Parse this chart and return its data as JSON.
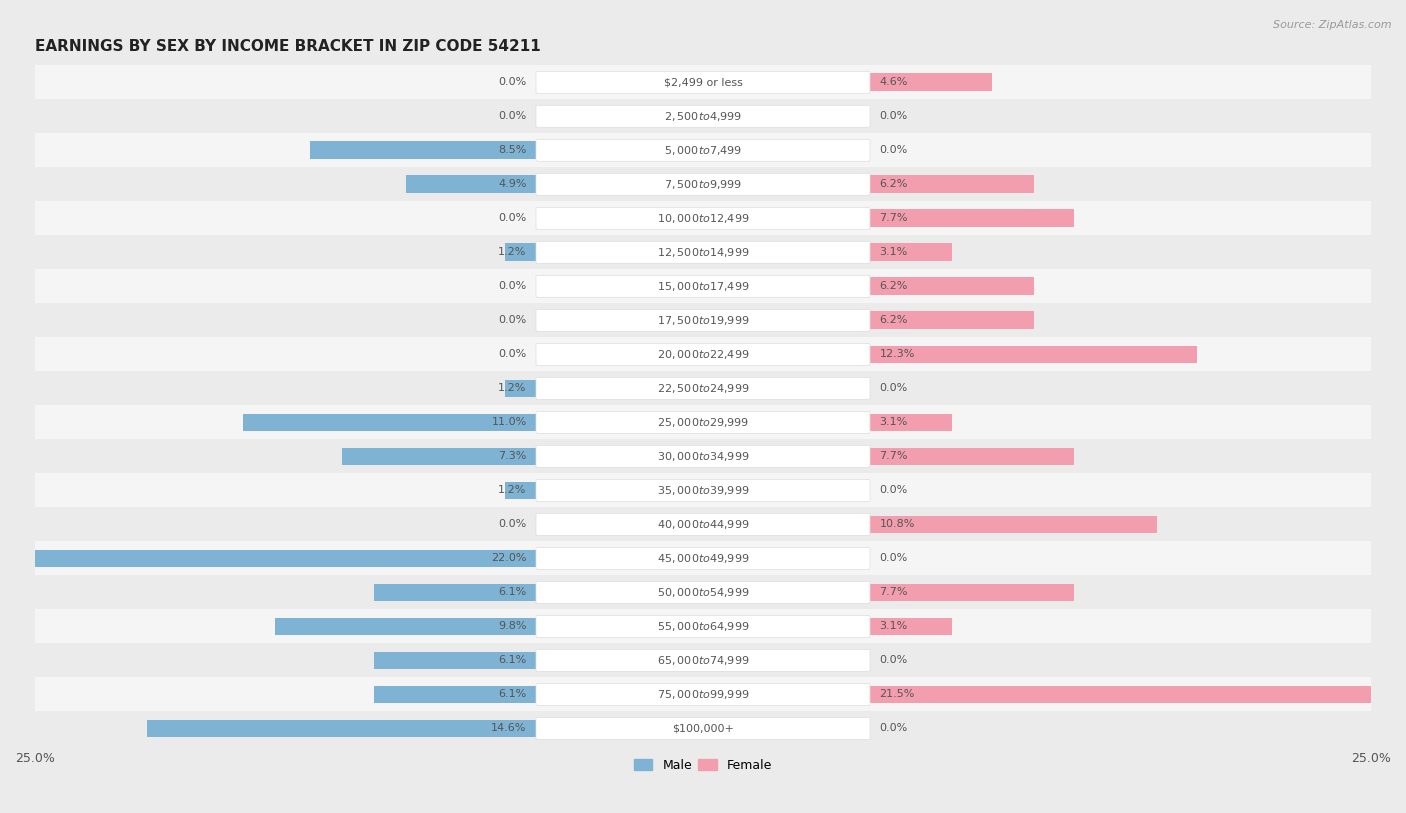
{
  "title": "EARNINGS BY SEX BY INCOME BRACKET IN ZIP CODE 54211",
  "source": "Source: ZipAtlas.com",
  "categories": [
    "$2,499 or less",
    "$2,500 to $4,999",
    "$5,000 to $7,499",
    "$7,500 to $9,999",
    "$10,000 to $12,499",
    "$12,500 to $14,999",
    "$15,000 to $17,499",
    "$17,500 to $19,999",
    "$20,000 to $22,499",
    "$22,500 to $24,999",
    "$25,000 to $29,999",
    "$30,000 to $34,999",
    "$35,000 to $39,999",
    "$40,000 to $44,999",
    "$45,000 to $49,999",
    "$50,000 to $54,999",
    "$55,000 to $64,999",
    "$65,000 to $74,999",
    "$75,000 to $99,999",
    "$100,000+"
  ],
  "male": [
    0.0,
    0.0,
    8.5,
    4.9,
    0.0,
    1.2,
    0.0,
    0.0,
    0.0,
    1.2,
    11.0,
    7.3,
    1.2,
    0.0,
    22.0,
    6.1,
    9.8,
    6.1,
    6.1,
    14.6
  ],
  "female": [
    4.6,
    0.0,
    0.0,
    6.2,
    7.7,
    3.1,
    6.2,
    6.2,
    12.3,
    0.0,
    3.1,
    7.7,
    0.0,
    10.8,
    0.0,
    7.7,
    3.1,
    0.0,
    21.5,
    0.0
  ],
  "male_color": "#7fb3d3",
  "female_color": "#f29eae",
  "label_color": "#555555",
  "bg_color": "#ebebeb",
  "row_colors": [
    "#f5f5f5",
    "#ebebeb"
  ],
  "pill_color": "#ffffff",
  "pill_border_color": "#dddddd",
  "xlim": 25.0,
  "bar_height": 0.52,
  "title_fontsize": 11,
  "label_fontsize": 8.5,
  "cat_fontsize": 8.0,
  "tick_fontsize": 9,
  "source_fontsize": 8,
  "value_label_fontsize": 8.0
}
